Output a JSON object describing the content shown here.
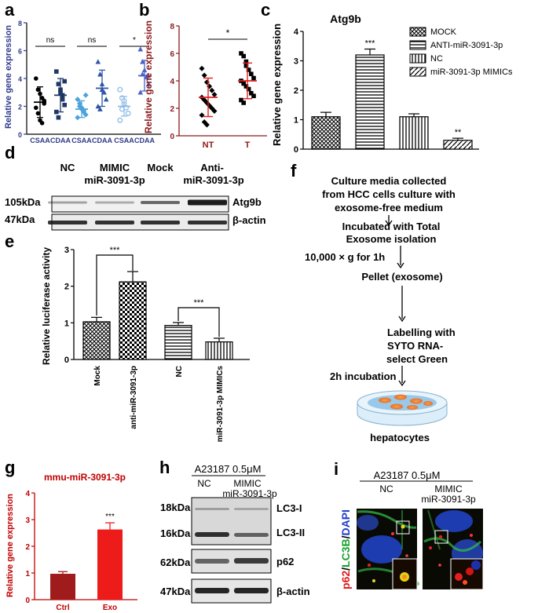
{
  "panels": {
    "a": "a",
    "b": "b",
    "c": "c",
    "d": "d",
    "e": "e",
    "f": "f",
    "g": "g",
    "h": "h",
    "i": "i"
  },
  "chart_data": [
    {
      "id": "a",
      "type": "scatter",
      "ylabel": "Relative gene expression",
      "categories": [
        "CSAA",
        "CDAA",
        "CSAA",
        "CDAA",
        "CSAA",
        "CDAA"
      ],
      "ylim": [
        0,
        8
      ],
      "yticks": [
        "0",
        "2",
        "4",
        "6",
        "8"
      ],
      "colors": [
        "#000000",
        "#1f3864",
        "#4ba3dc",
        "#2e55a6",
        "#8ebde6",
        "#4a62c8"
      ],
      "markers": [
        "circle",
        "square",
        "diamond",
        "triangle",
        "circle-open",
        "triangle"
      ],
      "means": [
        2.3,
        2.8,
        1.8,
        3.3,
        2.0,
        4.2
      ],
      "sd": [
        1.1,
        1.2,
        0.6,
        1.3,
        0.7,
        1.1
      ],
      "points": [
        [
          4.0,
          3.2,
          2.9,
          2.6,
          2.2,
          1.9,
          1.5,
          1.0,
          0.8,
          2.4
        ],
        [
          4.5,
          3.6,
          3.2,
          2.8,
          2.1,
          1.6,
          1.2,
          3.0,
          2.5,
          3.8
        ],
        [
          2.5,
          2.0,
          1.8,
          1.6,
          1.4,
          1.2,
          2.2,
          1.9,
          1.7,
          2.8
        ],
        [
          5.2,
          4.3,
          3.6,
          3.0,
          2.5,
          2.0,
          1.8,
          3.2
        ],
        [
          3.2,
          2.6,
          2.2,
          1.9,
          1.5,
          1.0,
          1.8,
          2.4
        ],
        [
          6.1,
          5.2,
          4.6,
          4.1,
          3.6,
          3.0,
          4.3
        ]
      ],
      "annotations": [
        "ns",
        "ns",
        "*"
      ]
    },
    {
      "id": "b",
      "type": "scatter",
      "ylabel": "Relative gene expression",
      "categories": [
        "NT",
        "T"
      ],
      "ylim": [
        0,
        8
      ],
      "yticks": [
        "0",
        "2",
        "4",
        "6",
        "8"
      ],
      "means": [
        2.8,
        4.0
      ],
      "sd": [
        1.4,
        1.3
      ],
      "points": [
        [
          4.9,
          4.4,
          3.9,
          3.6,
          3.3,
          3.0,
          2.8,
          2.6,
          2.4,
          2.2,
          2.0,
          1.8,
          1.5,
          1.0,
          0.8
        ],
        [
          6.0,
          5.8,
          5.1,
          4.8,
          4.5,
          4.2,
          4.0,
          3.8,
          3.6,
          3.4,
          3.1,
          2.9,
          2.6,
          2.4,
          5.4
        ]
      ],
      "annotation": "*"
    },
    {
      "id": "c",
      "type": "bar",
      "title": "Atg9b",
      "ylabel": "Relative gene expression",
      "ylim": [
        0,
        4
      ],
      "yticks": [
        "0",
        "1",
        "2",
        "3",
        "4"
      ],
      "series": [
        {
          "name": "MOCK",
          "value": 1.1,
          "err": 0.15
        },
        {
          "name": "ANTI-miR-3091-3p",
          "value": 3.2,
          "err": 0.2
        },
        {
          "name": "NC",
          "value": 1.1,
          "err": 0.1
        },
        {
          "name": "miR-3091-3p MIMICs",
          "value": 0.3,
          "err": 0.07
        }
      ],
      "annotations": [
        "",
        "***",
        "",
        "**"
      ]
    },
    {
      "id": "e",
      "type": "bar",
      "ylabel": "Relative luciferase activity",
      "ylim": [
        0,
        3
      ],
      "yticks": [
        "0",
        "1",
        "2",
        "3"
      ],
      "categories": [
        "Mock",
        "anti-miR-3091-3p",
        "NC",
        "miR-3091-3p MIMICs"
      ],
      "values": [
        1.03,
        2.12,
        0.93,
        0.48
      ],
      "errors": [
        0.12,
        0.28,
        0.08,
        0.1
      ],
      "annotations": [
        "***",
        "***"
      ]
    },
    {
      "id": "g",
      "type": "bar",
      "title": "mmu-miR-3091-3p",
      "ylabel": "Relative gene expression",
      "ylim": [
        0,
        4
      ],
      "yticks": [
        "0",
        "1",
        "2",
        "3",
        "4"
      ],
      "categories": [
        "Ctrl",
        "Exo"
      ],
      "values": [
        0.97,
        2.63
      ],
      "errors": [
        0.08,
        0.25
      ],
      "colors": [
        "#a01c1c",
        "#ee1b1b"
      ],
      "annotation": "***"
    }
  ],
  "blot_d": {
    "lanes": [
      "NC",
      "MIMIC\nmiR-3091-3p",
      "Mock",
      "Anti-\nmiR-3091-3p"
    ],
    "sizes": [
      "105kDa",
      "47kDa"
    ],
    "proteins": [
      "Atg9b",
      "β-actin"
    ]
  },
  "flow_f": {
    "steps": [
      "Culture media collected",
      "from HCC cells culture with",
      "exosome-free medium",
      "Incubated with Total",
      "Exosome isolation",
      "10,000 × g for 1h",
      "Pellet (exosome)",
      "Labelling   with",
      "SYTO      RNA-",
      "select Green",
      "2h incubation",
      "hepatocytes"
    ]
  },
  "blot_h": {
    "condition": "A23187  0.5μM",
    "lanes": [
      "NC",
      "MIMIC",
      "miR-3091-3p"
    ],
    "sizes": [
      "18kDa",
      "16kDa",
      "62kDa",
      "47kDa"
    ],
    "proteins": [
      "LC3-I",
      "LC3-II",
      "p62",
      "β-actin"
    ]
  },
  "micro_i": {
    "condition": "A23187  0.5μM",
    "lanes": [
      "NC",
      "MIMIC",
      "miR-3091-3p"
    ],
    "stain": [
      "p62",
      "/",
      "LC3B",
      "/",
      "DAPI"
    ]
  }
}
